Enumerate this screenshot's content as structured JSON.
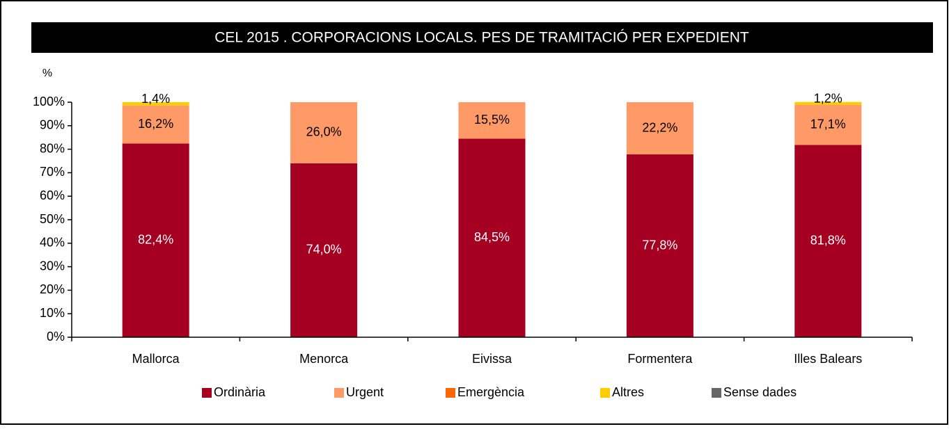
{
  "chart_data": {
    "type": "stacked_bar",
    "title": "CEL 2015 . CORPORACIONS LOCALS. PES DE  TRAMITACIÓ PER EXPEDIENT",
    "y_label": "%",
    "categories": [
      "Mallorca",
      "Menorca",
      "Eivissa",
      "Formentera",
      "Illes Balears"
    ],
    "series": [
      {
        "name": "Ordinària",
        "color": "#a50021",
        "values": [
          82.4,
          74.0,
          84.5,
          77.8,
          81.8
        ],
        "value_labels": [
          "82,4%",
          "74,0%",
          "84,5%",
          "77,8%",
          "81,8%"
        ]
      },
      {
        "name": "Urgent",
        "color": "#ff9966",
        "values": [
          16.2,
          26.0,
          15.5,
          22.2,
          17.1
        ],
        "value_labels": [
          "16,2%",
          "26,0%",
          "15,5%",
          "22,2%",
          "17,1%"
        ]
      },
      {
        "name": "Emergència",
        "color": "#ff6600",
        "values": [
          0,
          0,
          0,
          0,
          0
        ],
        "value_labels": [
          null,
          null,
          null,
          null,
          null
        ]
      },
      {
        "name": "Altres",
        "color": "#ffcc00",
        "values": [
          1.4,
          0,
          0,
          0,
          1.2
        ],
        "value_labels": [
          "1,4%",
          null,
          null,
          null,
          "1,2%"
        ]
      },
      {
        "name": "Sense dades",
        "color": "#666666",
        "values": [
          0,
          0,
          0,
          0,
          0
        ],
        "value_labels": [
          null,
          null,
          null,
          null,
          null
        ]
      }
    ],
    "ylim": [
      0,
      100
    ],
    "yticks": [
      {
        "value": 0,
        "label": "0%"
      },
      {
        "value": 10,
        "label": "10%"
      },
      {
        "value": 20,
        "label": "20%"
      },
      {
        "value": 30,
        "label": "30%"
      },
      {
        "value": 40,
        "label": "40%"
      },
      {
        "value": 50,
        "label": "50%"
      },
      {
        "value": 60,
        "label": "60%"
      },
      {
        "value": 70,
        "label": "70%"
      },
      {
        "value": 80,
        "label": "80%"
      },
      {
        "value": 90,
        "label": "90%"
      },
      {
        "value": 100,
        "label": "100%"
      }
    ],
    "legend": "bottom"
  }
}
